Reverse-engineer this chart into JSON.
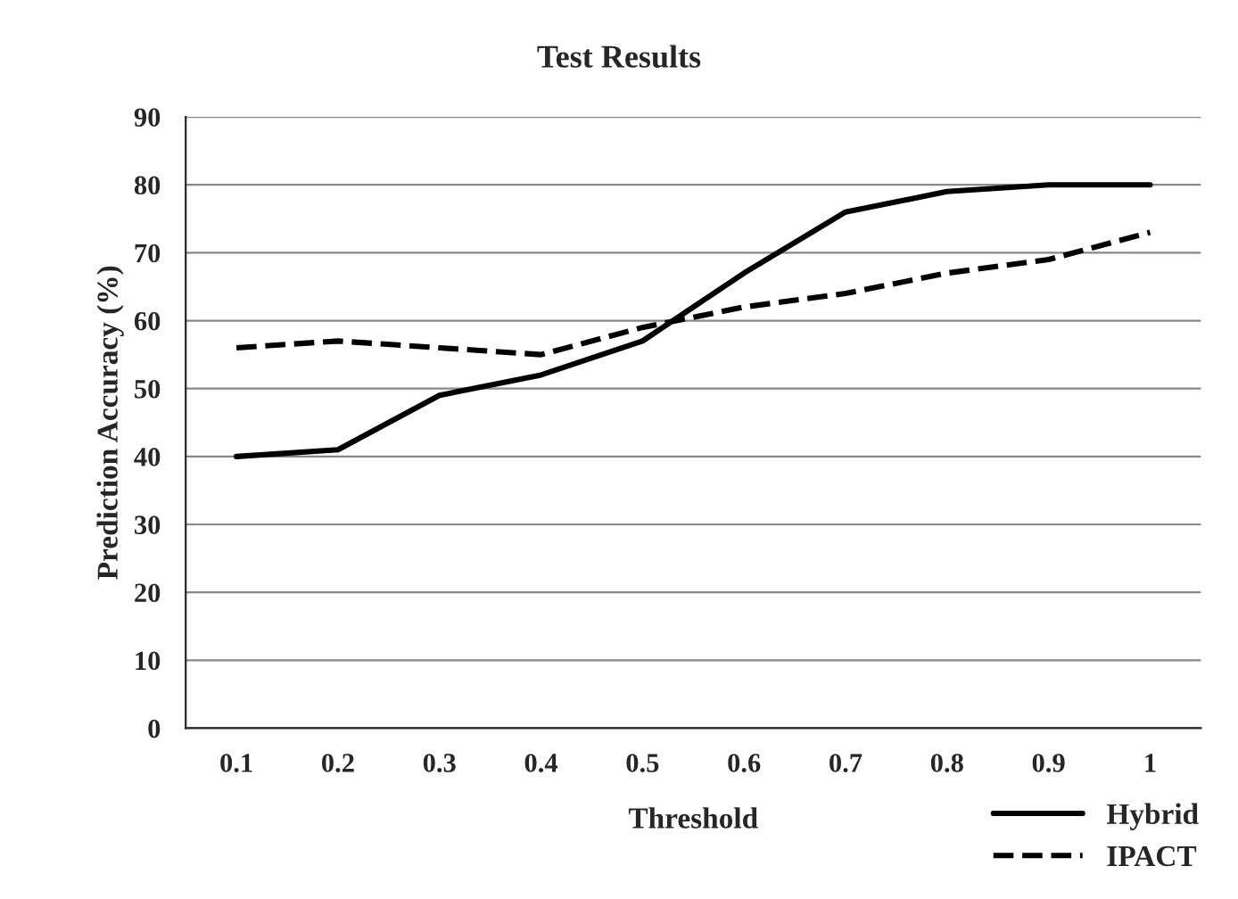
{
  "chart_data": {
    "type": "line",
    "title": "Test Results",
    "xlabel": "Threshold",
    "ylabel": "Prediction Accuracy (%)",
    "categories": [
      "0.1",
      "0.2",
      "0.3",
      "0.4",
      "0.5",
      "0.6",
      "0.7",
      "0.8",
      "0.9",
      "1"
    ],
    "series": [
      {
        "name": "Hybrid",
        "color": "#000000",
        "line_style": "solid",
        "values": [
          40,
          41,
          49,
          52,
          57,
          67,
          76,
          79,
          80,
          80
        ]
      },
      {
        "name": "IPACT",
        "color": "#000000",
        "line_style": "dashed",
        "values": [
          56,
          57,
          56,
          55,
          59,
          62,
          64,
          67,
          69,
          73
        ]
      }
    ],
    "ylim": [
      0,
      90
    ],
    "yticks": [
      0,
      10,
      20,
      30,
      40,
      50,
      60,
      70,
      80,
      90
    ],
    "grid": "y",
    "legend": "bottom right",
    "marker": "none"
  }
}
